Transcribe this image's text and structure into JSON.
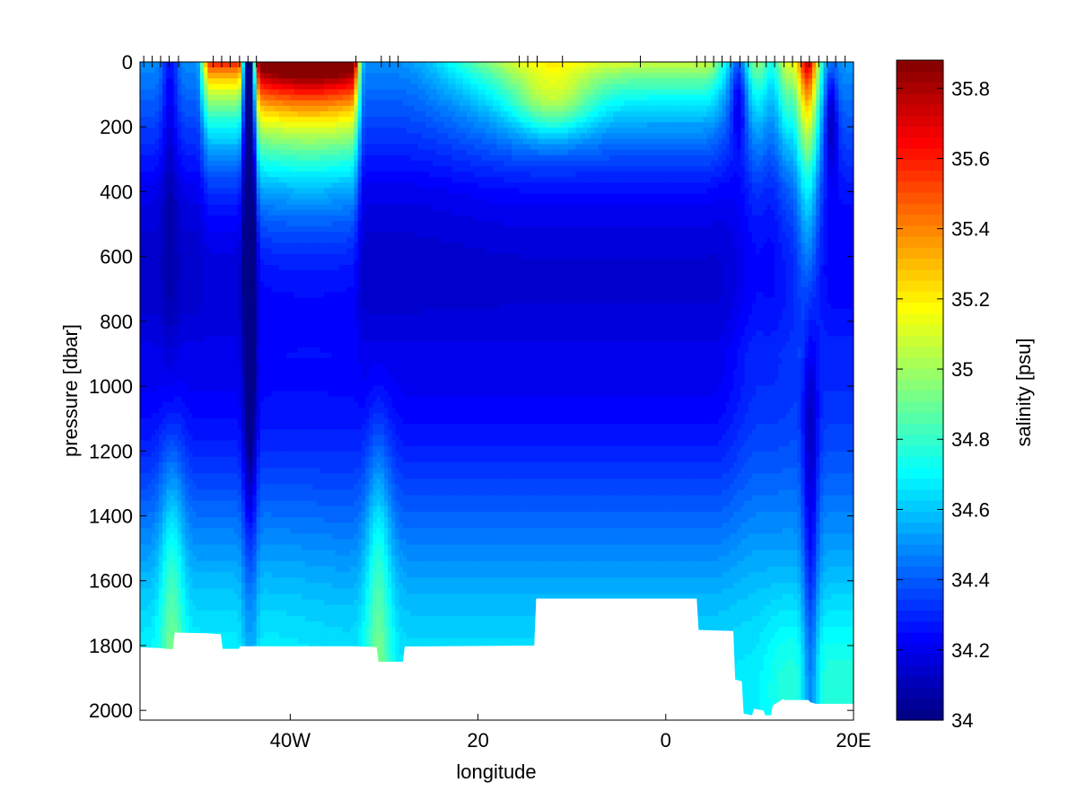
{
  "chart_data": {
    "type": "heatmap",
    "title": "",
    "xlabel": "longitude",
    "ylabel": "pressure [dbar]",
    "x_range": [
      -56,
      20
    ],
    "y_range": [
      0,
      2030
    ],
    "y_reversed": true,
    "x_ticks": [
      {
        "value": -40,
        "label": "40W"
      },
      {
        "value": -20,
        "label": "20"
      },
      {
        "value": 0,
        "label": "0"
      },
      {
        "value": 20,
        "label": "20E"
      }
    ],
    "y_ticks": [
      0,
      200,
      400,
      600,
      800,
      1000,
      1200,
      1400,
      1600,
      1800,
      2000
    ],
    "station_longitudes": [
      -55.6,
      -54.7,
      -53.8,
      -52.9,
      -51.9,
      -48.2,
      -47.3,
      -46.4,
      -45.4,
      -44.5,
      -43.6,
      -33,
      -30.3,
      -29.4,
      -28.5,
      -15.6,
      -14.7,
      -13.7,
      -11,
      -2.7,
      3.3,
      4.2,
      5.1,
      6,
      6.9,
      7.9,
      8.8,
      9.7,
      10.7,
      11.6,
      12.6,
      13.5,
      14.4,
      15.3,
      16.3,
      17.2,
      18.1,
      19.1
    ],
    "bottom_depth_profile": {
      "longitude": [
        -56,
        -54,
        -52.5,
        -52.3,
        -49,
        -47.4,
        -47.2,
        -45.5,
        -45.3,
        -33.2,
        -30.8,
        -30.6,
        -28,
        -27.8,
        -14,
        -13.8,
        -3.3,
        -3.1,
        3.3,
        3.5,
        7.2,
        7.4,
        8.1,
        8.3,
        9.2,
        9.4,
        10.4,
        10.6,
        11.2,
        11.4,
        12.5,
        12.7,
        15.2,
        15.4,
        16,
        20
      ],
      "pressure": [
        1805,
        1808,
        1812,
        1760,
        1762,
        1765,
        1810,
        1810,
        1802,
        1802,
        1805,
        1850,
        1850,
        1803,
        1800,
        1655,
        1655,
        1655,
        1655,
        1752,
        1755,
        1905,
        1910,
        2010,
        2015,
        1995,
        2000,
        2015,
        2015,
        1985,
        1965,
        1968,
        1968,
        1975,
        1980,
        1980
      ]
    },
    "colorbar": {
      "label": "salinity [psu]",
      "range": [
        34.0,
        35.88
      ],
      "ticks": [
        34,
        34.2,
        34.4,
        34.6,
        34.8,
        35,
        35.2,
        35.4,
        35.6,
        35.8
      ],
      "colormap": "jet",
      "levels": 60
    },
    "field_features": [
      {
        "name": "surface salinity maximum",
        "lon_range": [
          -44,
          -32
        ],
        "pressure_range": [
          0,
          300
        ],
        "salinity": 35.8
      },
      {
        "name": "surface salinity maximum",
        "lon_range": [
          -50,
          -45
        ],
        "pressure_range": [
          0,
          250
        ],
        "salinity": 35.55
      },
      {
        "name": "subsurface salinity maximum",
        "lon_range": [
          13.5,
          16.5
        ],
        "pressure_range": [
          0,
          500
        ],
        "salinity": 35.5
      },
      {
        "name": "fresh core",
        "lon_range": [
          -44,
          -45
        ],
        "pressure_range": [
          100,
          1800
        ],
        "salinity": 34.25
      },
      {
        "name": "intermediate water minimum",
        "lon_range": [
          -50,
          5
        ],
        "pressure_range": [
          500,
          1000
        ],
        "salinity": 34.15
      },
      {
        "name": "deep water",
        "lon_range": [
          -56,
          20
        ],
        "pressure_range": [
          1400,
          2000
        ],
        "salinity": 34.65
      }
    ]
  }
}
